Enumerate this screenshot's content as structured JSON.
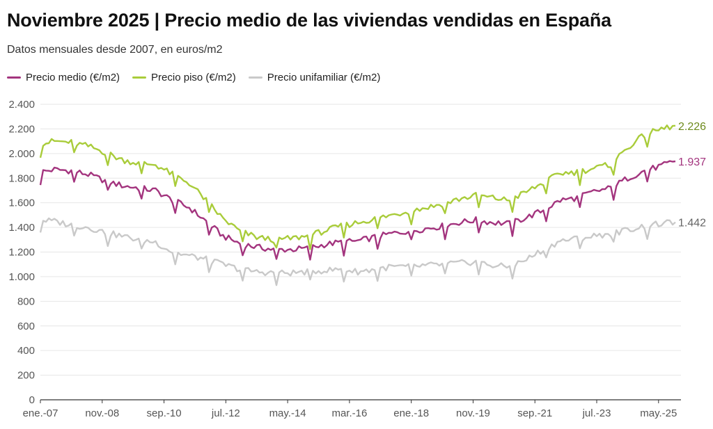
{
  "title": "Noviembre 2025 | Precio medio de las viviendas vendidas en España",
  "subtitle": "Datos mensuales desde 2007, en euros/m2",
  "chart_data": {
    "type": "line",
    "ylim": [
      0,
      2400
    ],
    "y_ticks": [
      0,
      200,
      400,
      600,
      800,
      1000,
      1200,
      1400,
      1600,
      1800,
      2000,
      2200,
      2400
    ],
    "y_tick_labels": [
      "0",
      "200",
      "400",
      "600",
      "800",
      "1.000",
      "1.200",
      "1.400",
      "1.600",
      "1.800",
      "2.000",
      "2.200",
      "2.400"
    ],
    "x_ticks": [
      "ene.-07",
      "nov.-08",
      "sep.-10",
      "jul.-12",
      "may.-14",
      "mar.-16",
      "ene.-18",
      "nov.-19",
      "sep.-21",
      "jul.-23",
      "may.-25"
    ],
    "x_start": "ene.-07",
    "x_end": "nov.-25",
    "grid": true,
    "legend_placement": "top-left",
    "series": [
      {
        "name": "Precio medio (€/m2)",
        "color": "#a3347e",
        "end_label": "1.937",
        "keypoints": [
          [
            "ene.-07",
            1850
          ],
          [
            "jun.-07",
            1870
          ],
          [
            "dic.-07",
            1860
          ],
          [
            "jun.-08",
            1830
          ],
          [
            "dic.-08",
            1780
          ],
          [
            "jun.-09",
            1740
          ],
          [
            "dic.-09",
            1720
          ],
          [
            "jun.-10",
            1700
          ],
          [
            "dic.-10",
            1620
          ],
          [
            "jun.-11",
            1560
          ],
          [
            "dic.-11",
            1450
          ],
          [
            "jun.-12",
            1330
          ],
          [
            "dic.-12",
            1270
          ],
          [
            "jun.-13",
            1240
          ],
          [
            "dic.-13",
            1220
          ],
          [
            "jun.-14",
            1220
          ],
          [
            "dic.-14",
            1230
          ],
          [
            "jun.-15",
            1260
          ],
          [
            "dic.-15",
            1280
          ],
          [
            "jun.-16",
            1290
          ],
          [
            "dic.-16",
            1320
          ],
          [
            "jun.-17",
            1350
          ],
          [
            "dic.-17",
            1370
          ],
          [
            "jun.-18",
            1390
          ],
          [
            "dic.-18",
            1410
          ],
          [
            "jun.-19",
            1440
          ],
          [
            "dic.-19",
            1460
          ],
          [
            "jun.-20",
            1440
          ],
          [
            "dic.-20",
            1430
          ],
          [
            "jun.-21",
            1480
          ],
          [
            "dic.-21",
            1540
          ],
          [
            "jun.-22",
            1620
          ],
          [
            "dic.-22",
            1640
          ],
          [
            "jun.-23",
            1690
          ],
          [
            "dic.-23",
            1720
          ],
          [
            "jun.-24",
            1800
          ],
          [
            "dic.-24",
            1860
          ],
          [
            "jun.-25",
            1900
          ],
          [
            "nov.-25",
            1937
          ]
        ]
      },
      {
        "name": "Precio piso (€/m2)",
        "color": "#a9cc3a",
        "end_label": "2.226",
        "keypoints": [
          [
            "ene.-07",
            2080
          ],
          [
            "jun.-07",
            2100
          ],
          [
            "dic.-07",
            2090
          ],
          [
            "jun.-08",
            2060
          ],
          [
            "dic.-08",
            2010
          ],
          [
            "jun.-09",
            1950
          ],
          [
            "dic.-09",
            1920
          ],
          [
            "jun.-10",
            1910
          ],
          [
            "dic.-10",
            1830
          ],
          [
            "jun.-11",
            1760
          ],
          [
            "dic.-11",
            1620
          ],
          [
            "jun.-12",
            1470
          ],
          [
            "dic.-12",
            1370
          ],
          [
            "jun.-13",
            1320
          ],
          [
            "dic.-13",
            1300
          ],
          [
            "jun.-14",
            1310
          ],
          [
            "dic.-14",
            1330
          ],
          [
            "jun.-15",
            1370
          ],
          [
            "dic.-15",
            1410
          ],
          [
            "jun.-16",
            1440
          ],
          [
            "dic.-16",
            1470
          ],
          [
            "jun.-17",
            1500
          ],
          [
            "dic.-17",
            1530
          ],
          [
            "jun.-18",
            1560
          ],
          [
            "dic.-18",
            1590
          ],
          [
            "jun.-19",
            1630
          ],
          [
            "dic.-19",
            1660
          ],
          [
            "jun.-20",
            1640
          ],
          [
            "dic.-20",
            1620
          ],
          [
            "jun.-21",
            1690
          ],
          [
            "dic.-21",
            1760
          ],
          [
            "jun.-22",
            1840
          ],
          [
            "dic.-22",
            1850
          ],
          [
            "jun.-23",
            1880
          ],
          [
            "dic.-23",
            1910
          ],
          [
            "jun.-24",
            2050
          ],
          [
            "dic.-24",
            2150
          ],
          [
            "jun.-25",
            2200
          ],
          [
            "nov.-25",
            2226
          ]
        ]
      },
      {
        "name": "Precio unifamiliar (€/m2)",
        "color": "#c9c9c9",
        "end_label": "1.442",
        "keypoints": [
          [
            "ene.-07",
            1460
          ],
          [
            "jun.-07",
            1450
          ],
          [
            "dic.-07",
            1420
          ],
          [
            "jun.-08",
            1400
          ],
          [
            "dic.-08",
            1360
          ],
          [
            "jun.-09",
            1330
          ],
          [
            "dic.-09",
            1300
          ],
          [
            "jun.-10",
            1280
          ],
          [
            "dic.-10",
            1200
          ],
          [
            "jun.-11",
            1170
          ],
          [
            "dic.-11",
            1140
          ],
          [
            "jun.-12",
            1100
          ],
          [
            "dic.-12",
            1060
          ],
          [
            "jun.-13",
            1040
          ],
          [
            "dic.-13",
            1030
          ],
          [
            "jun.-14",
            1030
          ],
          [
            "dic.-14",
            1040
          ],
          [
            "jun.-15",
            1050
          ],
          [
            "dic.-15",
            1060
          ],
          [
            "jun.-16",
            1040
          ],
          [
            "dic.-16",
            1060
          ],
          [
            "jun.-17",
            1080
          ],
          [
            "dic.-17",
            1080
          ],
          [
            "jun.-18",
            1090
          ],
          [
            "dic.-18",
            1100
          ],
          [
            "jun.-19",
            1110
          ],
          [
            "dic.-19",
            1120
          ],
          [
            "jun.-20",
            1090
          ],
          [
            "dic.-20",
            1080
          ],
          [
            "jun.-21",
            1140
          ],
          [
            "dic.-21",
            1220
          ],
          [
            "jun.-22",
            1290
          ],
          [
            "dic.-22",
            1310
          ],
          [
            "jun.-23",
            1330
          ],
          [
            "dic.-23",
            1350
          ],
          [
            "jun.-24",
            1380
          ],
          [
            "dic.-24",
            1410
          ],
          [
            "jun.-25",
            1430
          ],
          [
            "nov.-25",
            1442
          ]
        ]
      }
    ]
  }
}
